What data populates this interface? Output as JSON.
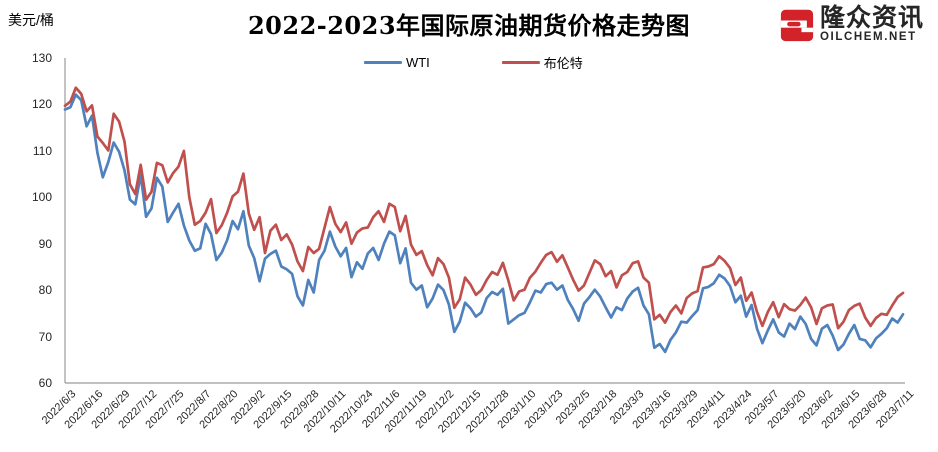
{
  "header": {
    "y_axis_unit": "美元/桶",
    "title": "2022-2023年国际原油期货价格走势图"
  },
  "logo": {
    "name": "隆众资讯",
    "domain": "OILCHEM.NET",
    "red": "#D2232A",
    "navy": "#1F2A4E"
  },
  "colors": {
    "axis": "#9B9B9B",
    "label_text": "#262626",
    "wti_blue": "#4F81BD",
    "brent_red": "#C0504D"
  },
  "chart_data": {
    "type": "line",
    "title": "2022-2023年国际原油期货价格走势图",
    "ylabel": "美元/桶",
    "ylim": [
      60,
      130
    ],
    "y_ticks": [
      130,
      120,
      110,
      100,
      90,
      80,
      70,
      60
    ],
    "grid": false,
    "legend_position": "top-center",
    "points_per_tick_interval": 5,
    "x_tick_labels": [
      "2022/6/3",
      "2022/6/16",
      "2022/6/29",
      "2022/7/12",
      "2022/7/25",
      "2022/8/7",
      "2022/8/20",
      "2022/9/2",
      "2022/9/15",
      "2022/9/28",
      "2022/10/11",
      "2022/10/24",
      "2022/11/6",
      "2022/11/19",
      "2022/12/2",
      "2022/12/15",
      "2022/12/28",
      "2023/1/10",
      "2023/1/23",
      "2023/2/5",
      "2023/2/18",
      "2023/3/3",
      "2023/3/16",
      "2023/3/29",
      "2023/4/11",
      "2023/4/24",
      "2023/5/7",
      "2023/5/20",
      "2023/6/2",
      "2023/6/15",
      "2023/6/28",
      "2023/7/11"
    ],
    "series": [
      {
        "key": "wti",
        "name": "WTI",
        "color": "#4F81BD",
        "values": [
          118.9,
          119.4,
          122.1,
          120.9,
          115.3,
          117.6,
          109.6,
          104.3,
          107.6,
          111.8,
          109.8,
          105.8,
          99.5,
          98.5,
          104.8,
          95.8,
          97.6,
          104.2,
          102.3,
          94.7,
          96.7,
          98.6,
          93.9,
          90.7,
          88.5,
          89.0,
          94.3,
          92.1,
          86.5,
          88.1,
          90.8,
          94.9,
          93.1,
          97.0,
          89.6,
          86.9,
          81.9,
          86.8,
          87.8,
          88.5,
          85.1,
          84.5,
          83.5,
          78.7,
          76.7,
          82.2,
          79.5,
          86.5,
          88.5,
          92.6,
          89.4,
          87.3,
          89.1,
          82.8,
          86.0,
          84.6,
          87.9,
          89.1,
          86.5,
          90.0,
          92.6,
          91.8,
          85.8,
          89.0,
          81.6,
          80.1,
          81.0,
          76.3,
          78.2,
          81.2,
          80.0,
          76.9,
          71.0,
          73.2,
          77.3,
          76.1,
          74.3,
          75.2,
          78.3,
          79.6,
          79.0,
          80.3,
          72.8,
          73.7,
          74.6,
          75.1,
          77.4,
          79.9,
          79.5,
          81.3,
          81.6,
          80.1,
          81.0,
          77.9,
          75.9,
          73.4,
          77.1,
          78.5,
          80.1,
          78.6,
          76.3,
          74.1,
          76.3,
          75.7,
          78.2,
          79.7,
          80.5,
          76.7,
          74.8,
          67.6,
          68.4,
          66.7,
          69.3,
          70.9,
          73.2,
          73.0,
          74.4,
          75.7,
          80.4,
          80.7,
          81.5,
          83.3,
          82.5,
          80.9,
          77.4,
          78.8,
          74.3,
          76.8,
          71.7,
          68.6,
          71.3,
          73.7,
          70.9,
          70.0,
          72.8,
          71.6,
          74.3,
          72.7,
          69.5,
          68.1,
          71.7,
          72.5,
          70.2,
          67.1,
          68.3,
          70.6,
          72.5,
          69.5,
          69.2,
          67.7,
          69.6,
          70.6,
          71.8,
          73.9,
          73.0,
          74.8
        ]
      },
      {
        "key": "brent",
        "name": "布伦特",
        "color": "#C0504D",
        "values": [
          119.7,
          120.6,
          123.6,
          122.3,
          118.5,
          119.8,
          113.1,
          111.7,
          110.1,
          118.0,
          116.3,
          112.0,
          102.8,
          100.7,
          107.0,
          99.5,
          101.2,
          107.4,
          106.9,
          103.2,
          105.2,
          106.6,
          110.0,
          100.0,
          94.1,
          94.9,
          96.7,
          99.6,
          92.3,
          94.0,
          96.7,
          100.2,
          101.2,
          105.1,
          96.5,
          93.0,
          95.7,
          88.0,
          92.8,
          94.1,
          90.8,
          92.0,
          89.8,
          86.2,
          84.1,
          89.3,
          88.0,
          88.9,
          93.4,
          97.9,
          94.3,
          92.5,
          94.6,
          90.0,
          92.4,
          93.3,
          93.5,
          95.7,
          97.0,
          94.7,
          98.6,
          97.9,
          92.7,
          96.0,
          89.8,
          87.6,
          88.4,
          85.4,
          83.2,
          86.9,
          85.6,
          82.7,
          76.2,
          78.0,
          82.7,
          81.2,
          79.0,
          80.0,
          82.2,
          83.9,
          83.3,
          85.9,
          82.1,
          77.8,
          79.7,
          80.1,
          82.7,
          84.0,
          85.9,
          87.6,
          88.2,
          86.1,
          87.5,
          84.9,
          82.2,
          79.9,
          81.0,
          83.7,
          86.4,
          85.6,
          83.0,
          84.1,
          80.6,
          83.2,
          83.9,
          85.8,
          86.2,
          82.7,
          81.6,
          73.7,
          74.7,
          73.0,
          75.3,
          76.7,
          75.0,
          78.3,
          79.3,
          79.8,
          84.9,
          85.1,
          85.6,
          87.3,
          86.3,
          84.8,
          81.1,
          82.7,
          77.7,
          79.5,
          75.3,
          72.3,
          75.3,
          77.4,
          74.2,
          77.0,
          75.9,
          75.6,
          76.8,
          78.4,
          76.3,
          72.7,
          76.1,
          76.7,
          76.9,
          71.8,
          73.2,
          75.7,
          76.6,
          77.1,
          74.1,
          72.3,
          74.0,
          74.9,
          74.7,
          76.7,
          78.5,
          79.4
        ]
      }
    ]
  }
}
